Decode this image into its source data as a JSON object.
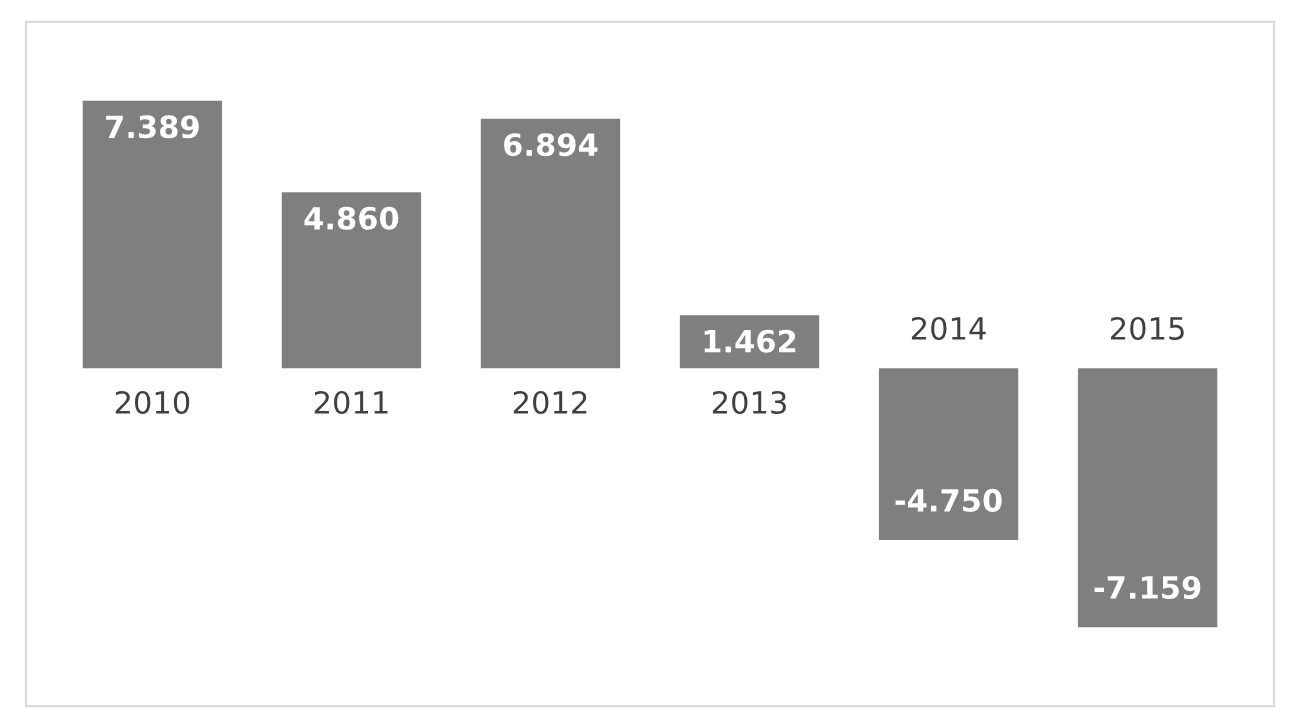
{
  "chart_data": {
    "type": "bar",
    "categories": [
      "2010",
      "2011",
      "2012",
      "2013",
      "2014",
      "2015"
    ],
    "values": [
      7.389,
      4.86,
      6.894,
      1.462,
      -4.75,
      -7.159
    ],
    "value_labels": [
      "7.389",
      "4.860",
      "6.894",
      "1.462",
      "-4.750",
      "-7.159"
    ],
    "color": "#7f7f7f"
  }
}
